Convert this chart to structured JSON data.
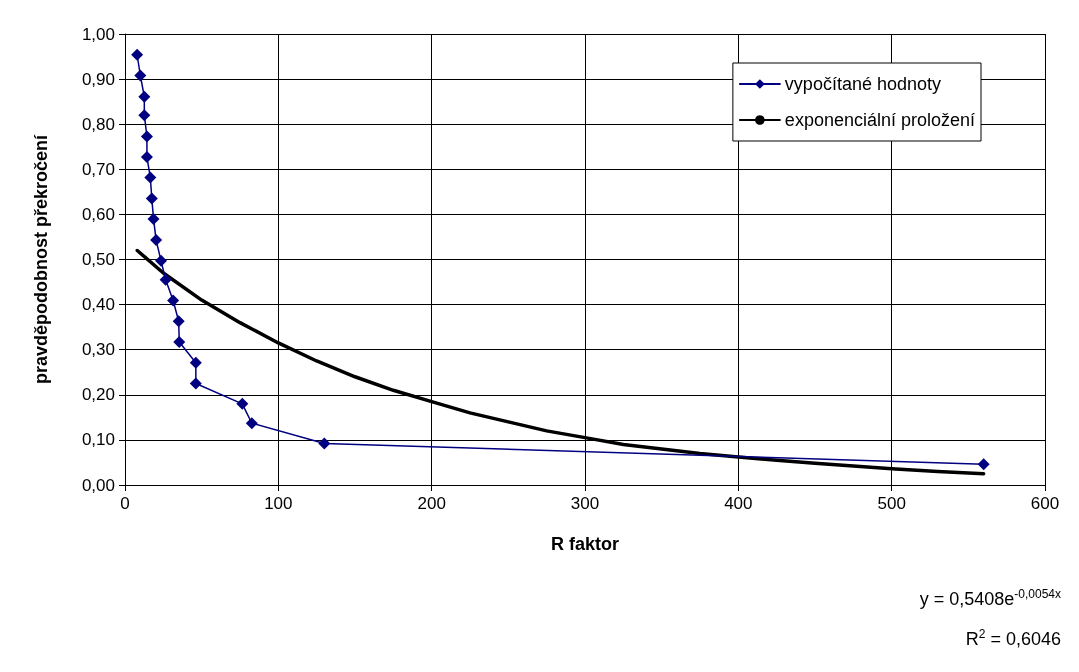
{
  "chart_data": {
    "type": "line",
    "xlabel": "R faktor",
    "ylabel": "pravděpodobnost překročení",
    "xlim": [
      0,
      600
    ],
    "xticks": [
      0,
      100,
      200,
      300,
      400,
      500,
      600
    ],
    "ylim": [
      0,
      1
    ],
    "yticks": [
      {
        "value": 0,
        "label": "0,00"
      },
      {
        "value": 0.1,
        "label": "0,10"
      },
      {
        "value": 0.2,
        "label": "0,20"
      },
      {
        "value": 0.3,
        "label": "0,30"
      },
      {
        "value": 0.4,
        "label": "0,40"
      },
      {
        "value": 0.5,
        "label": "0,50"
      },
      {
        "value": 0.6,
        "label": "0,60"
      },
      {
        "value": 0.7,
        "label": "0,70"
      },
      {
        "value": 0.8,
        "label": "0,80"
      },
      {
        "value": 0.9,
        "label": "0,90"
      },
      {
        "value": 1,
        "label": "1,00"
      }
    ],
    "grid": true,
    "legend": "top right",
    "series": [
      {
        "name": "vypočítané hodnoty",
        "color": "#000080",
        "marker": "diamond",
        "x": [
          7.9,
          10,
          12.6,
          12.6,
          14.3,
          14.3,
          16.5,
          17.5,
          18.6,
          20.3,
          23.5,
          26.5,
          31.4,
          35,
          35.4,
          46.2,
          46.2,
          76.5,
          82.7,
          130,
          560
        ],
        "values": [
          0.954,
          0.908,
          0.861,
          0.82,
          0.773,
          0.727,
          0.682,
          0.635,
          0.59,
          0.543,
          0.497,
          0.455,
          0.409,
          0.363,
          0.317,
          0.271,
          0.225,
          0.18,
          0.137,
          0.092,
          0.046
        ]
      },
      {
        "name": "exponenciální proložení",
        "color": "#000000",
        "marker": "none",
        "x": [
          8,
          25,
          50,
          75,
          100,
          125,
          150,
          175,
          200,
          225,
          250,
          275,
          300,
          325,
          350,
          375,
          400,
          425,
          450,
          475,
          500,
          530,
          560
        ],
        "values": [
          0.52,
          0.47,
          0.41,
          0.36,
          0.315,
          0.275,
          0.24,
          0.21,
          0.185,
          0.16,
          0.14,
          0.12,
          0.105,
          0.09,
          0.08,
          0.07,
          0.062,
          0.055,
          0.048,
          0.042,
          0.036,
          0.03,
          0.025
        ]
      }
    ],
    "annotations": [
      "y = 0,5408e$^{-0,0054x}$",
      "R$^{2}$ = 0,6046"
    ]
  }
}
